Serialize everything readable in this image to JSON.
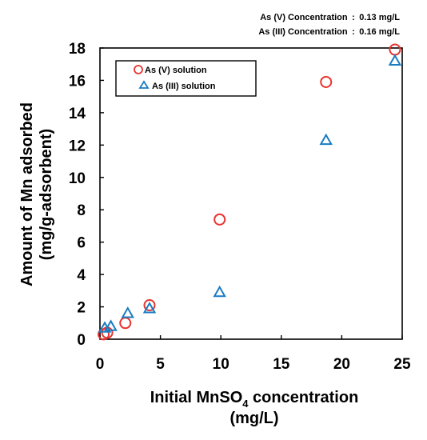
{
  "notes": {
    "line1": "As (V) Concentration : 0.13 mg/L",
    "line2": "As (III) Concentration : 0.16 mg/L"
  },
  "chart_data": {
    "type": "scatter",
    "title": "",
    "xlabel": {
      "main": "Initial MnSO",
      "sub": "4",
      "rest": " concentration",
      "unit": "(mg/L)"
    },
    "ylabel": {
      "line1": "Amount of Mn adsorbed",
      "line2": "(mg/g-adsorbent)"
    },
    "xlim": [
      0,
      25
    ],
    "ylim": [
      0,
      18
    ],
    "xticks": [
      0,
      5,
      10,
      15,
      20,
      25
    ],
    "yticks": [
      0,
      2,
      4,
      6,
      8,
      10,
      12,
      14,
      16,
      18
    ],
    "grid": false,
    "legend_position": "top-left",
    "series": [
      {
        "name": "As (V) solution",
        "marker": "circle",
        "color": "#e8332f",
        "x": [
          0.3,
          0.6,
          2.1,
          4.1,
          9.9,
          18.7,
          24.4
        ],
        "y": [
          0.3,
          0.4,
          1.0,
          2.1,
          7.4,
          15.9,
          17.9
        ]
      },
      {
        "name": "As (III) solution",
        "marker": "triangle",
        "color": "#1a7cc2",
        "x": [
          0.4,
          0.9,
          2.3,
          4.1,
          9.9,
          18.7,
          24.4
        ],
        "y": [
          0.7,
          0.8,
          1.6,
          1.9,
          2.9,
          12.3,
          17.2
        ]
      }
    ]
  }
}
